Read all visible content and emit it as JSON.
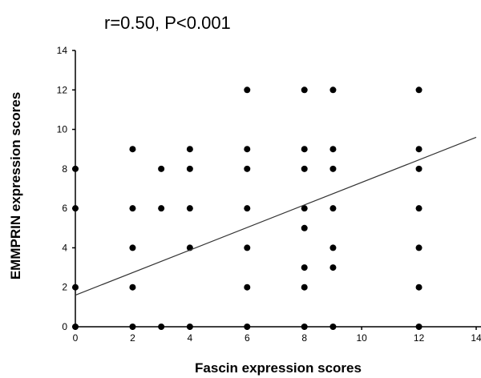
{
  "chart_data": {
    "type": "scatter",
    "title": "r=0.50, P<0.001",
    "xlabel": "Fascin expression scores",
    "ylabel": "EMMPRIN expression scores",
    "xlim": [
      0,
      14
    ],
    "ylim": [
      0,
      14
    ],
    "x_ticks": [
      "0",
      "2",
      "4",
      "6",
      "8",
      "10",
      "12",
      "14"
    ],
    "y_ticks": [
      "0",
      "2",
      "4",
      "6",
      "8",
      "10",
      "12",
      "14"
    ],
    "grid": false,
    "legend": "none",
    "points": [
      {
        "x": 0,
        "y": 8
      },
      {
        "x": 0,
        "y": 6
      },
      {
        "x": 0,
        "y": 2
      },
      {
        "x": 0,
        "y": 0
      },
      {
        "x": 2,
        "y": 9
      },
      {
        "x": 2,
        "y": 6
      },
      {
        "x": 2,
        "y": 4
      },
      {
        "x": 2,
        "y": 2
      },
      {
        "x": 2,
        "y": 0
      },
      {
        "x": 3,
        "y": 8
      },
      {
        "x": 3,
        "y": 6
      },
      {
        "x": 3,
        "y": 0
      },
      {
        "x": 4,
        "y": 9
      },
      {
        "x": 4,
        "y": 8
      },
      {
        "x": 4,
        "y": 6
      },
      {
        "x": 4,
        "y": 4
      },
      {
        "x": 4,
        "y": 0
      },
      {
        "x": 6,
        "y": 12
      },
      {
        "x": 6,
        "y": 9
      },
      {
        "x": 6,
        "y": 8
      },
      {
        "x": 6,
        "y": 6
      },
      {
        "x": 6,
        "y": 4
      },
      {
        "x": 6,
        "y": 2
      },
      {
        "x": 6,
        "y": 0
      },
      {
        "x": 8,
        "y": 12
      },
      {
        "x": 8,
        "y": 9
      },
      {
        "x": 8,
        "y": 8
      },
      {
        "x": 8,
        "y": 6
      },
      {
        "x": 8,
        "y": 5
      },
      {
        "x": 8,
        "y": 3
      },
      {
        "x": 8,
        "y": 2
      },
      {
        "x": 8,
        "y": 0
      },
      {
        "x": 9,
        "y": 12
      },
      {
        "x": 9,
        "y": 9
      },
      {
        "x": 9,
        "y": 8
      },
      {
        "x": 9,
        "y": 6
      },
      {
        "x": 9,
        "y": 4
      },
      {
        "x": 9,
        "y": 3
      },
      {
        "x": 9,
        "y": 0
      },
      {
        "x": 12,
        "y": 12
      },
      {
        "x": 12,
        "y": 9
      },
      {
        "x": 12,
        "y": 8
      },
      {
        "x": 12,
        "y": 6
      },
      {
        "x": 12,
        "y": 4
      },
      {
        "x": 12,
        "y": 2
      },
      {
        "x": 12,
        "y": 0
      }
    ],
    "trendline": {
      "x": [
        0,
        14
      ],
      "y": [
        1.6,
        9.6
      ]
    }
  }
}
